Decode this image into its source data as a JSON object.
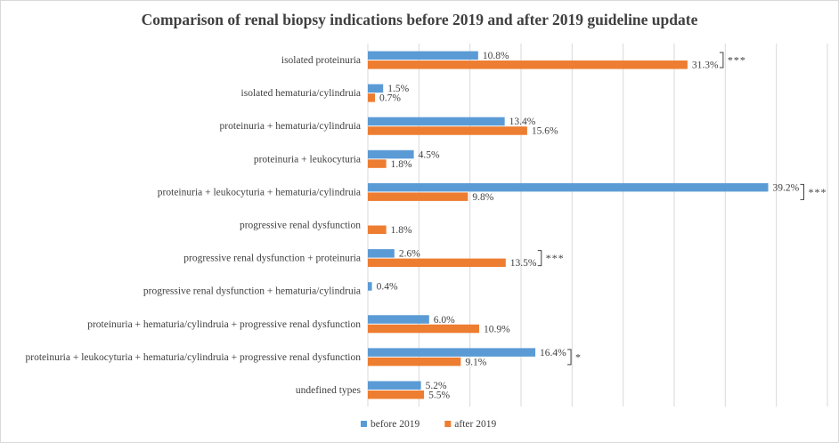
{
  "chart_data": {
    "type": "bar",
    "orientation": "horizontal",
    "title": "Comparison of renal biopsy indications before 2019 and after 2019 guideline update",
    "categories": [
      "isolated proteinuria",
      "isolated hematuria/cylindruia",
      "proteinuria + hematuria/cylindruia",
      "proteinuria + leukocyturia",
      "proteinuria + leukocyturia + hematuria/cylindruia",
      "progressive renal dysfunction",
      "progressive renal dysfunction + proteinuria",
      "progressive renal dysfunction + hematuria/cylindruia",
      "proteinuria + hematuria/cylindruia + progressive renal dysfunction",
      "proteinuria + leukocyturia + hematuria/cylindruia + progressive renal dysfunction",
      "undefined types"
    ],
    "series": [
      {
        "name": "before 2019",
        "color": "#5b9bd5",
        "values": [
          10.8,
          1.5,
          13.4,
          4.5,
          39.2,
          null,
          2.6,
          0.4,
          6.0,
          16.4,
          5.2
        ],
        "labels": [
          "10.8%",
          "1.5%",
          "13.4%",
          "4.5%",
          "39.2%",
          "",
          "2.6%",
          "0.4%",
          "6.0%",
          "16.4%",
          "5.2%"
        ]
      },
      {
        "name": "after 2019",
        "color": "#ed7d31",
        "values": [
          31.3,
          0.7,
          15.6,
          1.8,
          9.8,
          1.8,
          13.5,
          null,
          10.9,
          9.1,
          5.5
        ],
        "labels": [
          "31.3%",
          "0.7%",
          "15.6%",
          "1.8%",
          "9.8%",
          "1.8%",
          "13.5%",
          "",
          "10.9%",
          "9.1%",
          "5.5%"
        ]
      }
    ],
    "significance": [
      {
        "category_index": 0,
        "text": "***"
      },
      {
        "category_index": 4,
        "text": "***"
      },
      {
        "category_index": 6,
        "text": "***"
      },
      {
        "category_index": 9,
        "text": "*"
      }
    ],
    "xlim": [
      0,
      45
    ],
    "grid": "vertical",
    "legend_position": "bottom"
  }
}
